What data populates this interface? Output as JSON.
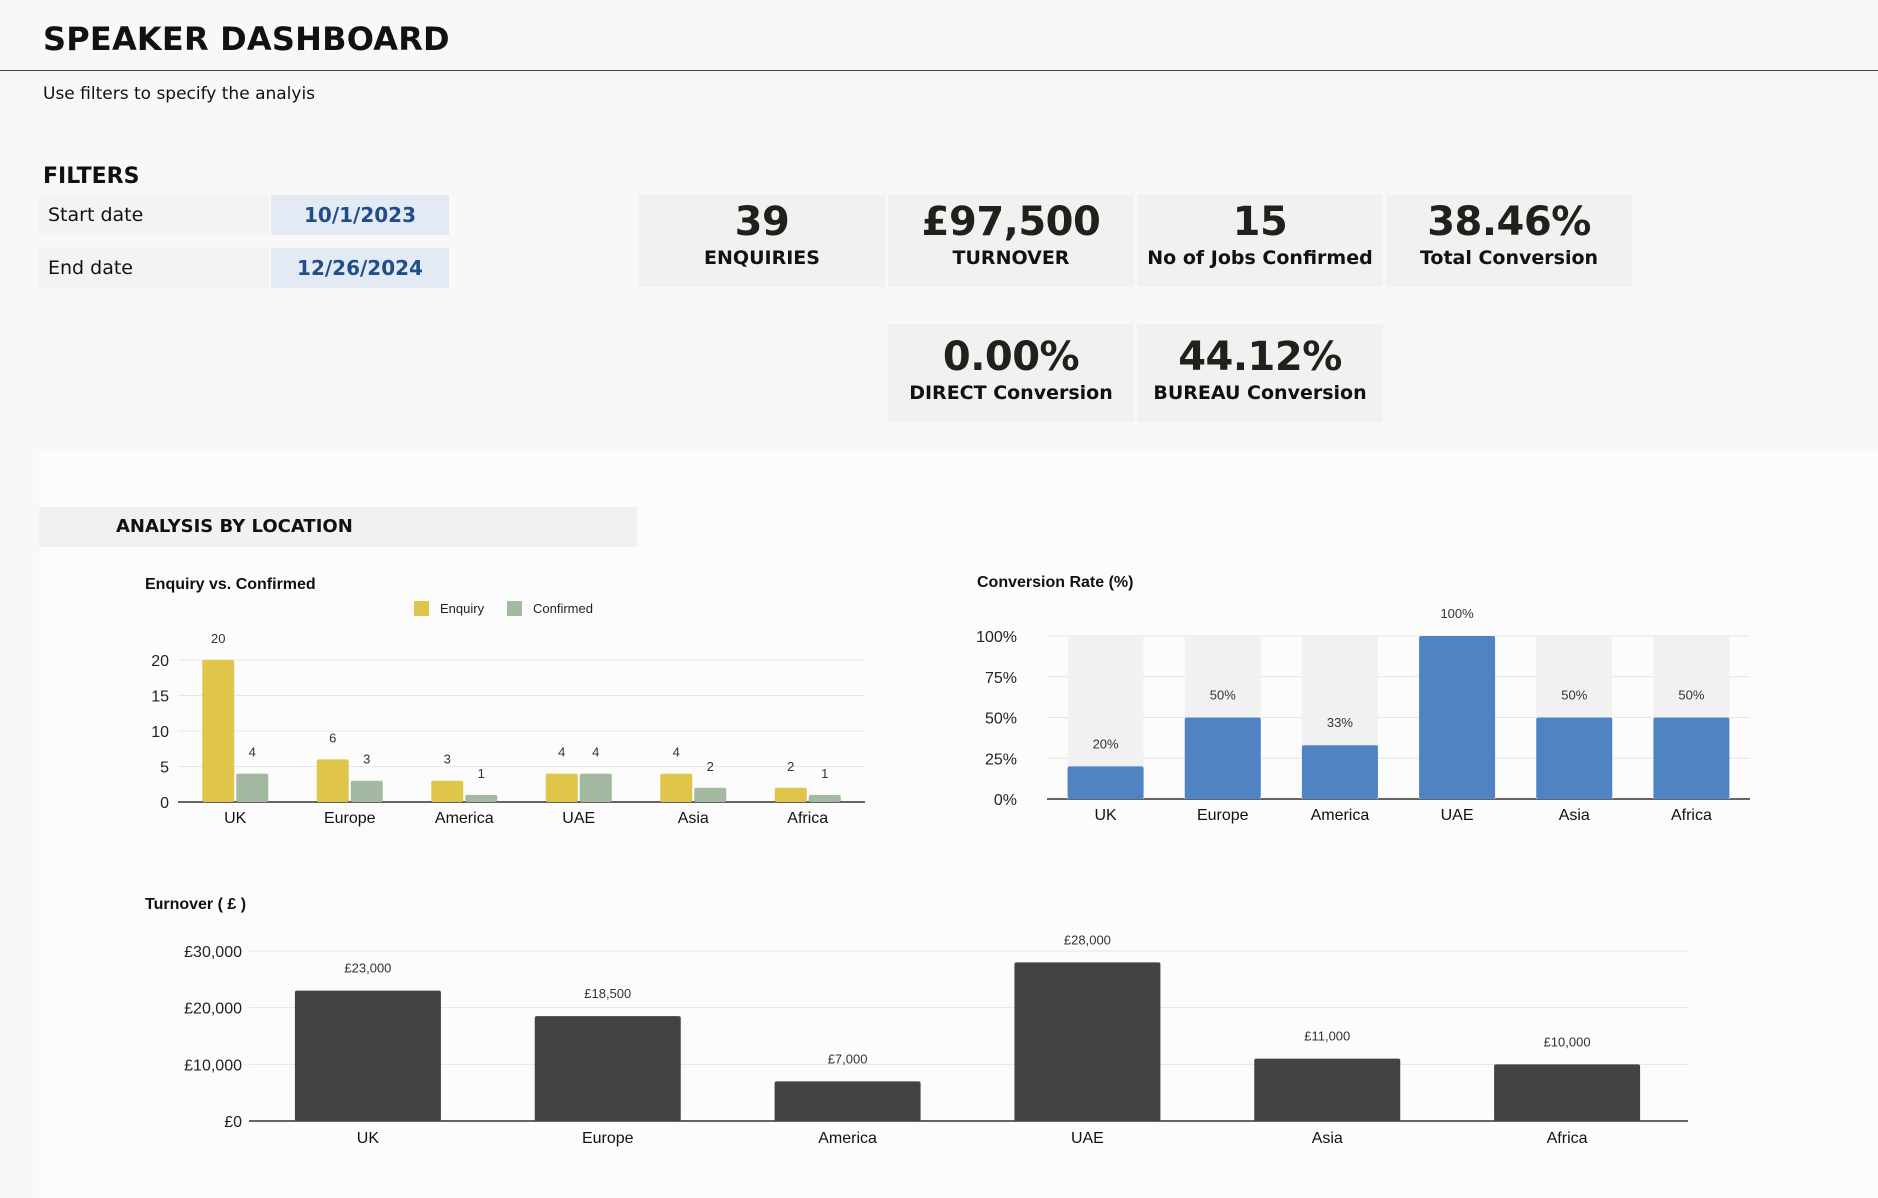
{
  "header": {
    "title": "SPEAKER DASHBOARD",
    "subtitle": "Use filters to specify the analyis"
  },
  "filters": {
    "heading": "FILTERS",
    "start_label": "Start date",
    "start_value": "10/1/2023",
    "end_label": "End date",
    "end_value": "12/26/2024"
  },
  "kpis": [
    {
      "value": "39",
      "label": "ENQUIRIES"
    },
    {
      "value": "£97,500",
      "label": "TURNOVER"
    },
    {
      "value": "15",
      "label": "No of Jobs Confirmed"
    },
    {
      "value": "38.46%",
      "label": "Total Conversion"
    },
    {
      "value": "0.00%",
      "label": "DIRECT Conversion"
    },
    {
      "value": "44.12%",
      "label": "BUREAU Conversion"
    }
  ],
  "section": {
    "title": "ANALYSIS BY LOCATION"
  },
  "colors": {
    "enquiry": "#dfc64a",
    "confirmed": "#a3b9a1",
    "conversion": "#4f83c4",
    "conversion_bg": "#f1f1f1",
    "turnover": "#434343"
  },
  "chart_data": [
    {
      "type": "bar",
      "title": "Enquiry vs. Confirmed",
      "categories": [
        "UK",
        "Europe",
        "America",
        "UAE",
        "Asia",
        "Africa"
      ],
      "series": [
        {
          "name": "Enquiry",
          "values": [
            20,
            6,
            3,
            4,
            4,
            2
          ]
        },
        {
          "name": "Confirmed",
          "values": [
            4,
            3,
            1,
            4,
            2,
            1
          ]
        }
      ],
      "yticks": [
        "0",
        "5",
        "10",
        "15",
        "20"
      ],
      "ylim": [
        0,
        20
      ],
      "legend": "top",
      "grid": true
    },
    {
      "type": "bar",
      "title": "Conversion Rate (%)",
      "categories": [
        "UK",
        "Europe",
        "America",
        "UAE",
        "Asia",
        "Africa"
      ],
      "values": [
        20,
        50,
        33,
        100,
        50,
        50
      ],
      "data_labels": [
        "20%",
        "50%",
        "33%",
        "100%",
        "50%",
        "50%"
      ],
      "yticks": [
        "0%",
        "25%",
        "50%",
        "75%",
        "100%"
      ],
      "ylim": [
        0,
        100
      ],
      "grid": true
    },
    {
      "type": "bar",
      "title": "Turnover ( £ )",
      "categories": [
        "UK",
        "Europe",
        "America",
        "UAE",
        "Asia",
        "Africa"
      ],
      "values": [
        23000,
        18500,
        7000,
        28000,
        11000,
        10000
      ],
      "data_labels": [
        "£23,000",
        "£18,500",
        "£7,000",
        "£28,000",
        "£11,000",
        "£10,000"
      ],
      "yticks": [
        "£0",
        "£10,000",
        "£20,000",
        "£30,000"
      ],
      "ylim": [
        0,
        30000
      ],
      "grid": true
    }
  ]
}
